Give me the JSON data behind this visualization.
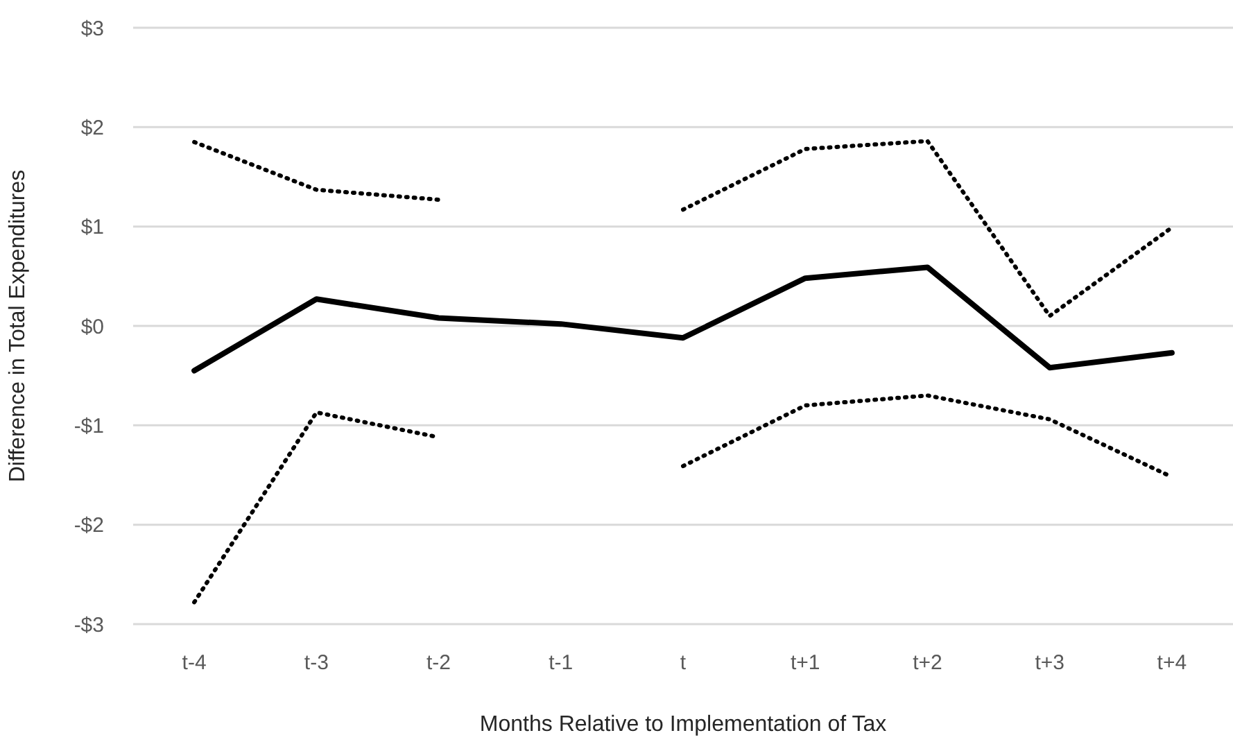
{
  "chart_data": {
    "type": "line",
    "xlabel": "Months Relative to Implementation of Tax",
    "ylabel": "Difference in Total Expenditures",
    "categories": [
      "t-4",
      "t-3",
      "t-2",
      "t-1",
      "t",
      "t+1",
      "t+2",
      "t+3",
      "t+4"
    ],
    "series": [
      {
        "color": "#000000",
        "line_style": "solid",
        "values": [
          -0.45,
          0.27,
          0.08,
          0.02,
          -0.12,
          0.48,
          0.59,
          -0.42,
          -0.27
        ]
      },
      {
        "color": "#000000",
        "line_style": "dotted",
        "values": [
          1.85,
          1.37,
          1.27,
          null,
          1.17,
          1.78,
          1.86,
          0.1,
          0.99
        ]
      },
      {
        "color": "#000000",
        "line_style": "dotted",
        "values": [
          -2.78,
          -0.87,
          -1.12,
          null,
          -1.41,
          -0.8,
          -0.7,
          -0.94,
          -1.52
        ]
      }
    ],
    "ylim": [
      -3,
      3
    ],
    "yticks": [
      {
        "value": -3,
        "label": "-$3"
      },
      {
        "value": -2,
        "label": "-$2"
      },
      {
        "value": -1,
        "label": "-$1"
      },
      {
        "value": 0,
        "label": "$0"
      },
      {
        "value": 1,
        "label": "$1"
      },
      {
        "value": 2,
        "label": "$2"
      },
      {
        "value": 3,
        "label": "$3"
      }
    ],
    "grid": "y"
  }
}
